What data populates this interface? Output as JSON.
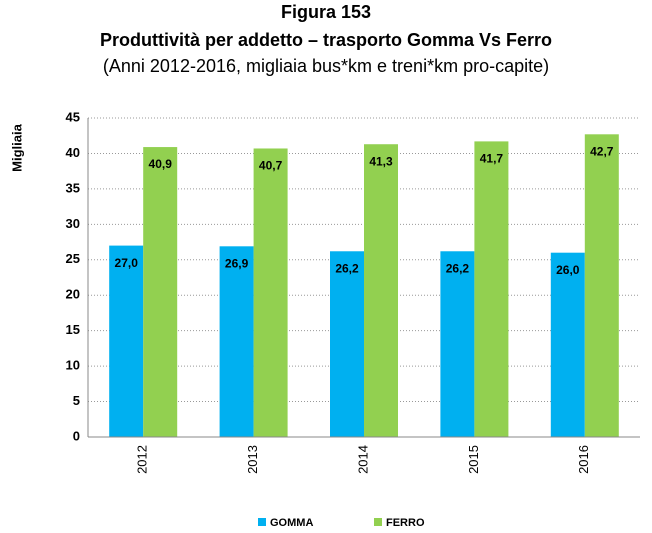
{
  "chart_data": {
    "type": "bar",
    "title": "Figura 153",
    "subtitle": "Produttività per addetto – trasporto Gomma Vs Ferro",
    "note": "(Anni 2012-2016, migliaia bus*km e treni*km pro-capite)",
    "y_label": "Migliaia",
    "categories": [
      "2012",
      "2013",
      "2014",
      "2015",
      "2016"
    ],
    "series": [
      {
        "name": "GOMMA",
        "color": "#00b0f0",
        "values": [
          27.0,
          26.9,
          26.2,
          26.2,
          26.0
        ],
        "value_labels": [
          "27,0",
          "26,9",
          "26,2",
          "26,2",
          "26,0"
        ]
      },
      {
        "name": "FERRO",
        "color": "#92d050",
        "values": [
          40.9,
          40.7,
          41.3,
          41.7,
          42.7
        ],
        "value_labels": [
          "40,9",
          "40,7",
          "41,3",
          "41,7",
          "42,7"
        ]
      }
    ],
    "ylim": [
      0,
      45
    ],
    "yticks": [
      0,
      5,
      10,
      15,
      20,
      25,
      30,
      35,
      40,
      45
    ],
    "grid": true,
    "legend": "bottom"
  }
}
